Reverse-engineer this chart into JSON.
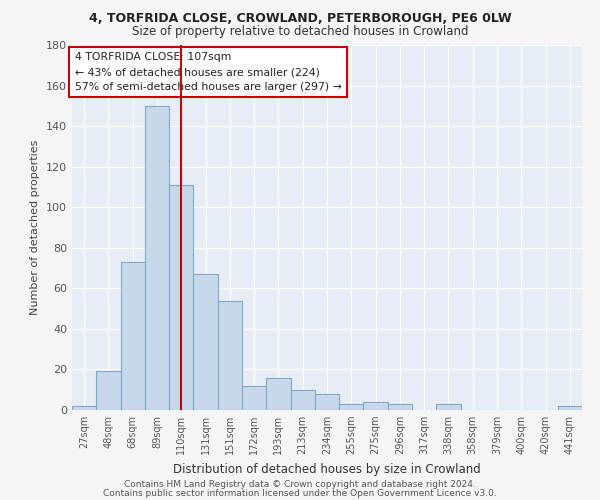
{
  "title1": "4, TORFRIDA CLOSE, CROWLAND, PETERBOROUGH, PE6 0LW",
  "title2": "Size of property relative to detached houses in Crowland",
  "xlabel": "Distribution of detached houses by size in Crowland",
  "ylabel": "Number of detached properties",
  "bar_color": "#c8d8ea",
  "bar_edge_color": "#7aaac8",
  "categories": [
    "27sqm",
    "48sqm",
    "68sqm",
    "89sqm",
    "110sqm",
    "131sqm",
    "151sqm",
    "172sqm",
    "193sqm",
    "213sqm",
    "234sqm",
    "255sqm",
    "275sqm",
    "296sqm",
    "317sqm",
    "338sqm",
    "358sqm",
    "379sqm",
    "400sqm",
    "420sqm",
    "441sqm"
  ],
  "values": [
    2,
    19,
    73,
    150,
    111,
    67,
    54,
    12,
    16,
    10,
    8,
    3,
    4,
    3,
    0,
    3,
    0,
    0,
    0,
    0,
    2
  ],
  "vline_x": 4,
  "vline_color": "#cc0000",
  "ylim": [
    0,
    180
  ],
  "yticks": [
    0,
    20,
    40,
    60,
    80,
    100,
    120,
    140,
    160,
    180
  ],
  "ann_line1": "4 TORFRIDA CLOSE: 107sqm",
  "ann_line2": "← 43% of detached houses are smaller (224)",
  "ann_line3": "57% of semi-detached houses are larger (297) →",
  "annotation_box_color": "#ffffff",
  "annotation_box_edge": "#cc0000",
  "bg_color": "#e8edf5",
  "grid_color": "#ffffff",
  "fig_bg": "#f5f5f5",
  "footer1": "Contains HM Land Registry data © Crown copyright and database right 2024.",
  "footer2": "Contains public sector information licensed under the Open Government Licence v3.0."
}
